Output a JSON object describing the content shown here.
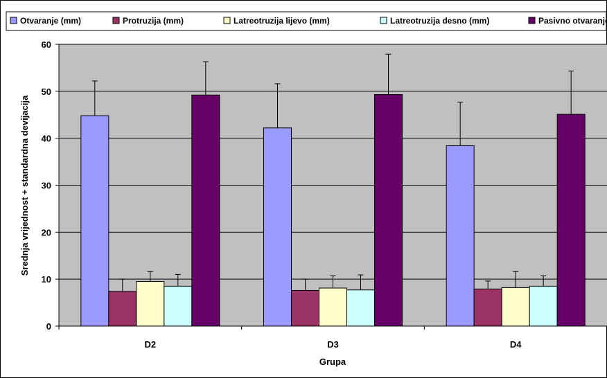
{
  "chart_data": {
    "type": "bar",
    "title": "",
    "xlabel": "Grupa",
    "ylabel": "Srednja vrijednost + standardna devijacija",
    "ylim": [
      0,
      60
    ],
    "yticks": [
      0,
      10,
      20,
      30,
      40,
      50,
      60
    ],
    "categories": [
      "D2",
      "D3",
      "D4"
    ],
    "grid": true,
    "legend_position": "top",
    "plot_background": "#C0C0C0",
    "series": [
      {
        "name": "Otvaranje (mm)",
        "color": "#9999FF",
        "values": [
          44.8,
          42.2,
          38.4
        ],
        "error": [
          7.4,
          9.4,
          9.3
        ]
      },
      {
        "name": "Protruzija (mm)",
        "color": "#993366",
        "values": [
          7.4,
          7.6,
          7.9
        ],
        "error": [
          2.6,
          2.4,
          1.7
        ]
      },
      {
        "name": "Latreotruzija lijevo (mm)",
        "color": "#FFFFCC",
        "values": [
          9.5,
          8.1,
          8.2
        ],
        "error": [
          2.1,
          2.6,
          3.4
        ]
      },
      {
        "name": "Latreotruzija desno (mm)",
        "color": "#CCFFFF",
        "values": [
          8.5,
          7.7,
          8.5
        ],
        "error": [
          2.5,
          3.2,
          2.2
        ]
      },
      {
        "name": "Pasivno otvaranje (mm)",
        "color": "#660066",
        "values": [
          49.2,
          49.3,
          45.1
        ],
        "error": [
          7.1,
          8.6,
          9.2
        ]
      }
    ]
  }
}
